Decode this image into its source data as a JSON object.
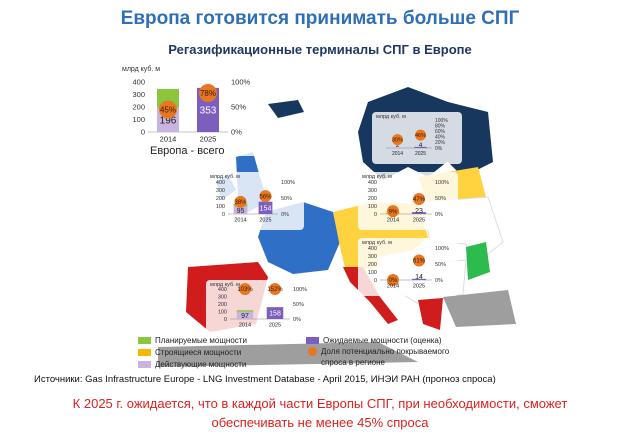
{
  "title": "Европа готовится принимать больше СПГ",
  "subtitle": "Регазификационные терминалы СПГ в Европе",
  "europe_label": "Европа - всего",
  "colors": {
    "planned": "#8cc63f",
    "under_construction": "#f5b800",
    "operating": "#c9b3e0",
    "expected": "#7b5fbf",
    "share_dot": "#e87722",
    "map_blue": "#2f6fc6",
    "map_red": "#d01c1c",
    "map_navy": "#17375e",
    "map_yellow": "#ffd23f",
    "map_green": "#2dbb4f",
    "map_grey": "#9e9e9e"
  },
  "legend": {
    "planned": "Планируемые мощности",
    "under_construction": "Строящиеся мощности",
    "operating": "Действующие мощности",
    "expected": "Ожидаемые мощности (оценка)",
    "share_line1": "Доля потенциально покрываемого",
    "share_line2": "спроса в регионе"
  },
  "source": "Источники: Gas Infrastructure Europe - LNG Investment Database - April 2015, ИНЭИ РАН (прогноз спроса)",
  "footer_line1": "К 2025 г. ожидается, что в каждой части Европы СПГ, при необходимости, сможет",
  "footer_line2": "обеспечивать не менее 45% спроса",
  "chart_data": [
    {
      "id": "europe",
      "type": "bar",
      "title": "Европа - всего",
      "ylabel": "млрд куб. м",
      "categories": [
        "2014",
        "2025"
      ],
      "ylim": [
        0,
        400
      ],
      "yticks": [
        "0",
        "100",
        "200",
        "300",
        "400"
      ],
      "y2ticks": [
        "0%",
        "50%",
        "100%"
      ],
      "stacks": [
        [
          {
            "key": "operating",
            "value": 196,
            "label": "196"
          },
          {
            "key": "planned",
            "value": 149
          }
        ],
        [
          {
            "key": "expected",
            "value": 353,
            "label": "353"
          }
        ]
      ],
      "shares": [
        "45%",
        "78%"
      ],
      "share_values": [
        45,
        78
      ]
    },
    {
      "id": "north",
      "type": "bar",
      "ylabel": "млрд куб. м",
      "categories": [
        "2014",
        "2025"
      ],
      "ylim": [
        0,
        100
      ],
      "y2ticks": [
        "0%",
        "20%",
        "40%",
        "60%",
        "80%",
        "100%"
      ],
      "stacks": [
        [
          {
            "key": "operating",
            "value": 2,
            "label": "2"
          }
        ],
        [
          {
            "key": "expected",
            "value": 4,
            "label": "4"
          }
        ]
      ],
      "shares": [
        "30%",
        "46%"
      ],
      "share_values": [
        30,
        46
      ]
    },
    {
      "id": "northwest",
      "type": "bar",
      "ylabel": "млрд куб. м",
      "categories": [
        "2014",
        "2025"
      ],
      "ylim": [
        0,
        400
      ],
      "yticks": [
        "0",
        "100",
        "200",
        "300",
        "400"
      ],
      "y2ticks": [
        "0%",
        "50%",
        "100%"
      ],
      "stacks": [
        [
          {
            "key": "operating",
            "value": 95,
            "label": "95"
          },
          {
            "key": "planned",
            "value": 30
          }
        ],
        [
          {
            "key": "expected",
            "value": 154,
            "label": "154"
          }
        ]
      ],
      "shares": [
        "38%",
        "56%"
      ],
      "share_values": [
        38,
        56
      ]
    },
    {
      "id": "central",
      "type": "bar",
      "ylabel": "млрд куб. м",
      "categories": [
        "2014",
        "2025"
      ],
      "ylim": [
        0,
        400
      ],
      "yticks": [
        "0",
        "100",
        "200",
        "300",
        "400"
      ],
      "y2ticks": [
        "0%",
        "50%",
        "100%"
      ],
      "stacks": [
        [
          {
            "key": "operating",
            "value": 8,
            "label": "8"
          },
          {
            "key": "under_construction",
            "value": 10
          }
        ],
        [
          {
            "key": "expected",
            "value": 23,
            "label": "23"
          }
        ]
      ],
      "shares": [
        "9%",
        "47%"
      ],
      "share_values": [
        9,
        47
      ]
    },
    {
      "id": "southeast",
      "type": "bar",
      "ylabel": "млрд куб. м",
      "categories": [
        "2014",
        "2025"
      ],
      "ylim": [
        0,
        400
      ],
      "yticks": [
        "0",
        "100",
        "200",
        "300",
        "400"
      ],
      "y2ticks": [
        "0%",
        "50%",
        "100%"
      ],
      "stacks": [
        [
          {
            "key": "operating",
            "value": 0,
            "label": "0"
          }
        ],
        [
          {
            "key": "expected",
            "value": 14,
            "label": "14"
          }
        ]
      ],
      "shares": [
        "0%",
        "61%"
      ],
      "share_values": [
        0,
        61
      ]
    },
    {
      "id": "southwest",
      "type": "bar",
      "ylabel": "млрд куб. м",
      "categories": [
        "2014",
        "2025"
      ],
      "ylim": [
        0,
        400
      ],
      "yticks": [
        "0",
        "100",
        "200",
        "300",
        "400"
      ],
      "y2ticks": [
        "0%",
        "50%",
        "100%"
      ],
      "stacks": [
        [
          {
            "key": "operating",
            "value": 97,
            "label": "97"
          },
          {
            "key": "planned",
            "value": 20
          }
        ],
        [
          {
            "key": "expected",
            "value": 158,
            "label": "158"
          }
        ]
      ],
      "shares": [
        "103%",
        "152%"
      ],
      "share_values": [
        103,
        152
      ]
    }
  ]
}
